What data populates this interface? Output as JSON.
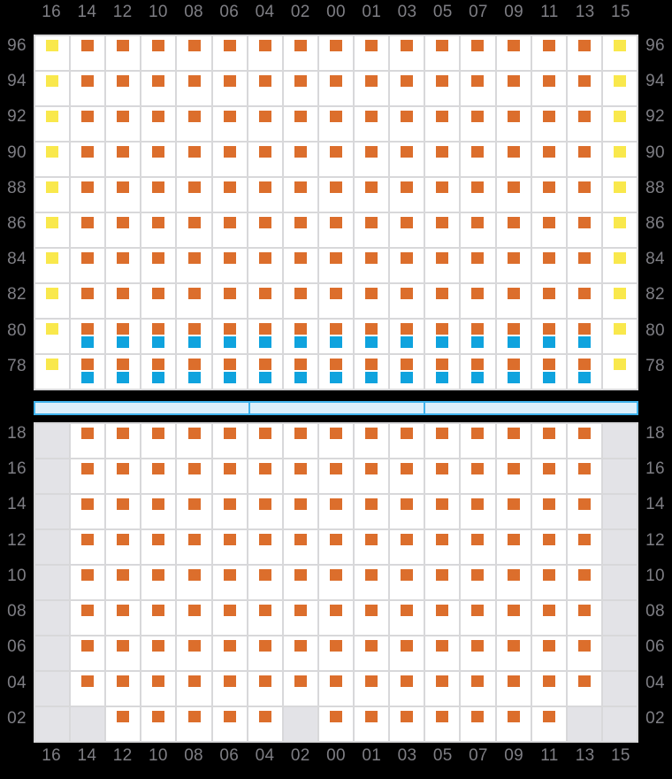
{
  "colors": {
    "background": "#000000",
    "label": "#7e7e84",
    "grid_line": "#d8d8da",
    "cell_bg": "#ffffff",
    "cell_disabled": "#e3e3e7",
    "orange": "#dc6e2c",
    "blue": "#0fa3de",
    "yellow": "#f9e84c",
    "bar_fill": "#dceffb",
    "bar_border": "#3fb2ec"
  },
  "column_labels": [
    "16",
    "14",
    "12",
    "10",
    "08",
    "06",
    "04",
    "02",
    "00",
    "01",
    "03",
    "05",
    "07",
    "09",
    "11",
    "13",
    "15"
  ],
  "marker_codes": {
    "O": "orange",
    "Y": "yellow",
    "B": "orange_blue",
    "G": "disabled"
  },
  "upper_panel": {
    "row_labels": [
      "96",
      "94",
      "92",
      "90",
      "88",
      "86",
      "84",
      "82",
      "80",
      "78"
    ],
    "rows": [
      "YOOOOOOOOOOOOOOOY",
      "YOOOOOOOOOOOOOOOY",
      "YOOOOOOOOOOOOOOOY",
      "YOOOOOOOOOOOOOOOY",
      "YOOOOOOOOOOOOOOOY",
      "YOOOOOOOOOOOOOOOY",
      "YOOOOOOOOOOOOOOOY",
      "YOOOOOOOOOOOOOOOY",
      "YBBBBBBBBBBBBBBBY",
      "YBBBBBBBBBBBBBBBY"
    ]
  },
  "lower_panel": {
    "row_labels": [
      "18",
      "16",
      "14",
      "12",
      "10",
      "08",
      "06",
      "04",
      "02"
    ],
    "rows": [
      "GOOOOOOOOOOOOOOOG",
      "GOOOOOOOOOOOOOOOG",
      "GOOOOOOOOOOOOOOOG",
      "GOOOOOOOOOOOOOOOG",
      "GOOOOOOOOOOOOOOOG",
      "GOOOOOOOOOOOOOOOG",
      "GOOOOOOOOOOOOOOOG",
      "GOOOOOOOOOOOOOOOG",
      "GGOOOOOGOOOOOOOGG"
    ]
  },
  "divider_bar": {
    "segment_count": 3,
    "divider_positions_pct": [
      35.4,
      64.6
    ]
  }
}
